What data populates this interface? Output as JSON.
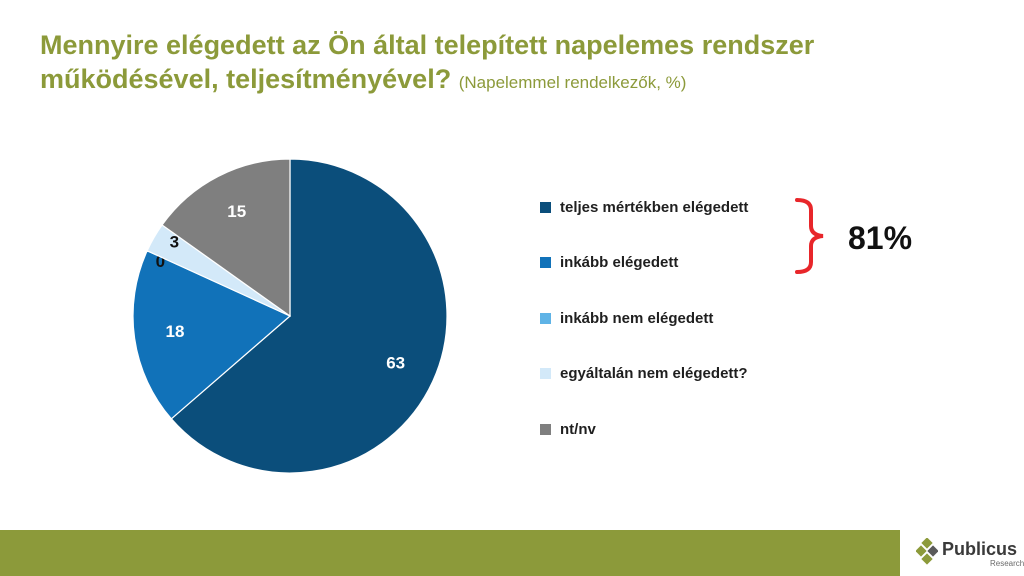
{
  "title": {
    "main": "Mennyire elégedett az Ön által telepített napelemes rendszer működésével, teljesítményével?",
    "sub": "(Napelemmel rendelkezők, %)"
  },
  "chart_data": {
    "type": "pie",
    "categories": [
      "teljes mértékben elégedett",
      "inkább elégedett",
      "inkább nem elégedett",
      "egyáltalán nem elégedett?",
      "nt/nv"
    ],
    "values": [
      63,
      18,
      0,
      3,
      15
    ],
    "colors": [
      "#0b4e7b",
      "#1172b9",
      "#5fb3e6",
      "#d3e9f9",
      "#7f7f7f"
    ],
    "label_colors": [
      "#ffffff",
      "#ffffff",
      "#111111",
      "#111111",
      "#ffffff"
    ],
    "start": "12 o'clock",
    "direction": "clockwise",
    "legend_position": "right"
  },
  "bracket": {
    "value": "81%",
    "color": "#e8262a"
  },
  "brand": {
    "name": "Publicus",
    "tagline": "Research",
    "accent": "#8c9a3a"
  }
}
